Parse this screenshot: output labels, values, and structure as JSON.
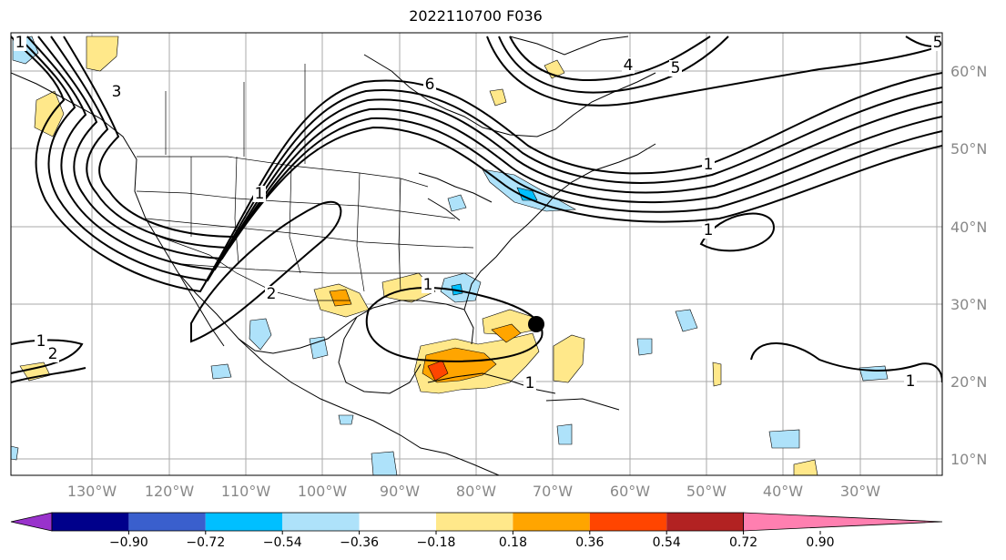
{
  "title": "2022110700 F036",
  "lat_labels": [
    "60°N",
    "50°N",
    "40°N",
    "30°N",
    "20°N",
    "10°N"
  ],
  "lon_labels": [
    "130°W",
    "120°W",
    "110°W",
    "100°W",
    "90°W",
    "80°W",
    "70°W",
    "60°W",
    "50°W",
    "40°W",
    "30°W"
  ],
  "contour_labels": [
    "1",
    "2",
    "3",
    "4",
    "5",
    "6",
    "1",
    "2",
    "1",
    "1",
    "1",
    "1",
    "1",
    "1",
    "5"
  ],
  "colorbar": {
    "ticks": [
      "−0.90",
      "−0.72",
      "−0.54",
      "−0.36",
      "−0.18",
      "0.18",
      "0.36",
      "0.54",
      "0.72",
      "0.90"
    ],
    "colors": [
      "#9932cc",
      "#00008b",
      "#3a5fcd",
      "#00bfff",
      "#aee2fa",
      "#ffffff",
      "#ffe88a",
      "#ffa500",
      "#ff4500",
      "#b22222",
      "#ff7fb0"
    ]
  },
  "marker": {
    "label": "storm-center",
    "lat": 27.5,
    "lon": -77
  }
}
